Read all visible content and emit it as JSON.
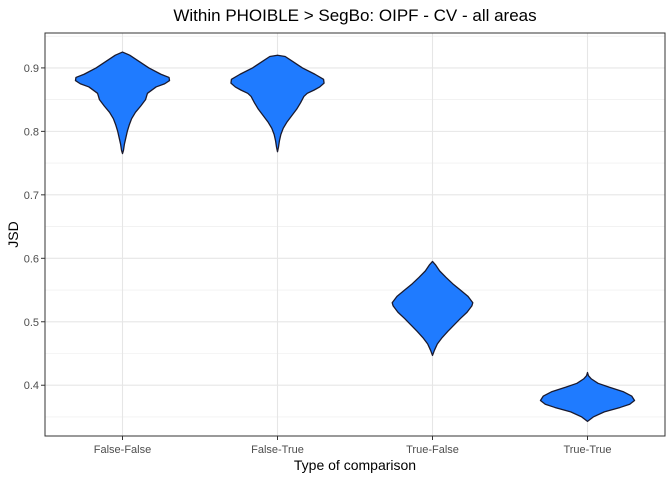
{
  "chart_data": {
    "type": "violin",
    "title": "Within PHOIBLE > SegBo: OIPF - CV - all areas",
    "xlabel": "Type of comparison",
    "ylabel": "JSD",
    "categories": [
      "False-False",
      "False-True",
      "True-False",
      "True-True"
    ],
    "ylim": [
      0.32,
      0.955
    ],
    "yticks": [
      0.4,
      0.5,
      0.6,
      0.7,
      0.8,
      0.9
    ],
    "ytick_labels": [
      "0.4",
      "0.5",
      "0.6",
      "0.7",
      "0.8",
      "0.9"
    ],
    "grid": true,
    "fill_color": "#1f7bff",
    "outline_color": "#1a1a2e",
    "violins": [
      {
        "category": "False-False",
        "profile": [
          [
            0.765,
            0.0
          ],
          [
            0.77,
            0.02
          ],
          [
            0.78,
            0.04
          ],
          [
            0.79,
            0.07
          ],
          [
            0.8,
            0.1
          ],
          [
            0.81,
            0.14
          ],
          [
            0.82,
            0.19
          ],
          [
            0.83,
            0.27
          ],
          [
            0.84,
            0.38
          ],
          [
            0.85,
            0.48
          ],
          [
            0.855,
            0.5
          ],
          [
            0.86,
            0.52
          ],
          [
            0.87,
            0.7
          ],
          [
            0.875,
            0.88
          ],
          [
            0.88,
            0.98
          ],
          [
            0.885,
            0.97
          ],
          [
            0.89,
            0.8
          ],
          [
            0.9,
            0.55
          ],
          [
            0.91,
            0.35
          ],
          [
            0.92,
            0.15
          ],
          [
            0.925,
            0.0
          ]
        ]
      },
      {
        "category": "False-True",
        "profile": [
          [
            0.768,
            0.0
          ],
          [
            0.775,
            0.02
          ],
          [
            0.785,
            0.04
          ],
          [
            0.795,
            0.07
          ],
          [
            0.805,
            0.12
          ],
          [
            0.815,
            0.2
          ],
          [
            0.825,
            0.3
          ],
          [
            0.835,
            0.4
          ],
          [
            0.845,
            0.48
          ],
          [
            0.855,
            0.55
          ],
          [
            0.86,
            0.62
          ],
          [
            0.865,
            0.76
          ],
          [
            0.87,
            0.88
          ],
          [
            0.876,
            0.97
          ],
          [
            0.882,
            0.96
          ],
          [
            0.89,
            0.78
          ],
          [
            0.9,
            0.52
          ],
          [
            0.91,
            0.32
          ],
          [
            0.918,
            0.16
          ],
          [
            0.92,
            0.0
          ]
        ]
      },
      {
        "category": "True-False",
        "profile": [
          [
            0.447,
            0.0
          ],
          [
            0.455,
            0.04
          ],
          [
            0.465,
            0.1
          ],
          [
            0.475,
            0.2
          ],
          [
            0.485,
            0.32
          ],
          [
            0.495,
            0.45
          ],
          [
            0.505,
            0.58
          ],
          [
            0.515,
            0.72
          ],
          [
            0.525,
            0.82
          ],
          [
            0.53,
            0.84
          ],
          [
            0.54,
            0.74
          ],
          [
            0.55,
            0.58
          ],
          [
            0.56,
            0.42
          ],
          [
            0.57,
            0.28
          ],
          [
            0.58,
            0.15
          ],
          [
            0.59,
            0.06
          ],
          [
            0.595,
            0.0
          ]
        ]
      },
      {
        "category": "True-True",
        "profile": [
          [
            0.343,
            0.0
          ],
          [
            0.35,
            0.12
          ],
          [
            0.358,
            0.35
          ],
          [
            0.365,
            0.68
          ],
          [
            0.37,
            0.88
          ],
          [
            0.376,
            0.98
          ],
          [
            0.383,
            0.92
          ],
          [
            0.39,
            0.74
          ],
          [
            0.397,
            0.45
          ],
          [
            0.403,
            0.22
          ],
          [
            0.41,
            0.08
          ],
          [
            0.415,
            0.02
          ],
          [
            0.42,
            0.0
          ]
        ]
      }
    ]
  }
}
